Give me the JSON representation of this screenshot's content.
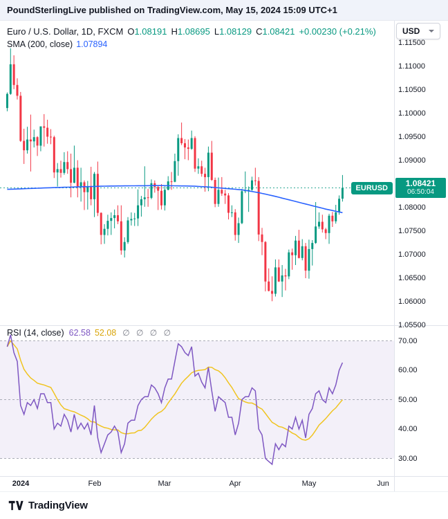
{
  "banner": {
    "publisher": "PoundSterlingLive",
    "text": " published on TradingView.com, May 15, 2024 15:09 UTC+1"
  },
  "currency_selector": {
    "label": "USD"
  },
  "legend": {
    "symbol": "Euro / U.S. Dollar, 1D, FXCM",
    "o_label": "O",
    "o": "1.08191",
    "h_label": "H",
    "h": "1.08695",
    "l_label": "L",
    "l": "1.08129",
    "c_label": "C",
    "c": "1.08421",
    "change": "+0.00230 (+0.21%)"
  },
  "sma_legend": {
    "label": "SMA (200, close)",
    "value": "1.07894"
  },
  "rsi_legend": {
    "label": "RSI (14, close)",
    "value": "62.58",
    "ma_value": "52.08",
    "markers": "∅ ∅ ∅ ∅"
  },
  "price_label": {
    "symbol": "EURUSD",
    "price": "1.08421",
    "countdown": "06:50:04"
  },
  "footer": {
    "brand": "TradingView"
  },
  "colors": {
    "up": "#089981",
    "down": "#f23645",
    "sma": "#2962ff",
    "rsi": "#7e57c2",
    "rsi_ma": "#f0c420",
    "band": "rgba(126,87,194,0.09)",
    "banner_bg": "#f0f3fa",
    "badge": "#089981"
  },
  "x_axis": {
    "ticks": [
      {
        "label": "2024",
        "index": 4,
        "bold": true
      },
      {
        "label": "Feb",
        "index": 26
      },
      {
        "label": "Mar",
        "index": 47
      },
      {
        "label": "Apr",
        "index": 68
      },
      {
        "label": "May",
        "index": 90
      },
      {
        "label": "Jun",
        "index": 112
      }
    ]
  },
  "chart_data": [
    {
      "type": "candlestick",
      "title": "Euro / U.S. Dollar, 1D, FXCM",
      "symbol": "EURUSD",
      "timeframe": "1D",
      "exchange": "FXCM",
      "last_price": 1.08421,
      "ohlc_last": {
        "o": 1.08191,
        "h": 1.08695,
        "l": 1.08129,
        "c": 1.08421,
        "change": 0.0023,
        "change_pct": 0.21
      },
      "ylim": [
        1.055,
        1.11975
      ],
      "yticks": [
        1.055,
        1.06,
        1.065,
        1.07,
        1.075,
        1.08,
        1.085,
        1.09,
        1.095,
        1.1,
        1.105,
        1.11,
        1.115
      ],
      "sma200_last": 1.07894,
      "sma200_points": [
        [
          0,
          1.0839
        ],
        [
          15,
          1.0843
        ],
        [
          30,
          1.0846
        ],
        [
          45,
          1.0847
        ],
        [
          55,
          1.0846
        ],
        [
          60,
          1.0844
        ],
        [
          65,
          1.0841
        ],
        [
          70,
          1.0838
        ],
        [
          75,
          1.0832
        ],
        [
          80,
          1.0824
        ],
        [
          85,
          1.0815
        ],
        [
          90,
          1.0806
        ],
        [
          95,
          1.0797
        ],
        [
          100,
          1.07894
        ]
      ],
      "candles": [
        [
          1.1012,
          1.1045,
          1.1005,
          1.1042
        ],
        [
          1.1042,
          1.1139,
          1.104,
          1.1105
        ],
        [
          1.1105,
          1.1124,
          1.1052,
          1.1061
        ],
        [
          1.1061,
          1.1075,
          1.103,
          1.1038
        ],
        [
          1.1038,
          1.1046,
          1.094,
          1.0942
        ],
        [
          1.0942,
          1.0968,
          1.0893,
          1.0922
        ],
        [
          1.0922,
          1.0972,
          1.0915,
          1.0945
        ],
        [
          1.0945,
          1.0998,
          1.0877,
          1.0941
        ],
        [
          1.0941,
          1.0966,
          1.0928,
          1.095
        ],
        [
          1.095,
          1.0952,
          1.091,
          1.0932
        ],
        [
          1.0932,
          1.097,
          1.092,
          1.0973
        ],
        [
          1.0973,
          1.0999,
          1.093,
          1.097
        ],
        [
          1.097,
          1.0987,
          1.0936,
          1.0951
        ],
        [
          1.0951,
          1.0967,
          1.0935,
          1.095
        ],
        [
          1.095,
          1.0953,
          1.0863,
          1.0875
        ],
        [
          1.0875,
          1.0895,
          1.0845,
          1.0882
        ],
        [
          1.0882,
          1.09,
          1.0864,
          1.0874
        ],
        [
          1.0874,
          1.0918,
          1.087,
          1.0897
        ],
        [
          1.0897,
          1.092,
          1.0872,
          1.0882
        ],
        [
          1.0882,
          1.0915,
          1.0822,
          1.0853
        ],
        [
          1.0853,
          1.0932,
          1.0852,
          1.0885
        ],
        [
          1.0885,
          1.0901,
          1.0822,
          1.0845
        ],
        [
          1.0845,
          1.0885,
          1.0813,
          1.0854
        ],
        [
          1.0854,
          1.0858,
          1.0795,
          1.0833
        ],
        [
          1.0833,
          1.0857,
          1.0796,
          1.0844
        ],
        [
          1.0844,
          1.0887,
          1.0805,
          1.0818
        ],
        [
          1.0818,
          1.0876,
          1.078,
          1.0872
        ],
        [
          1.0872,
          1.0898,
          1.0782,
          1.0789
        ],
        [
          1.0789,
          1.079,
          1.0722,
          1.0742
        ],
        [
          1.0742,
          1.0765,
          1.0723,
          1.0755
        ],
        [
          1.0755,
          1.0785,
          1.0741,
          1.0772
        ],
        [
          1.0772,
          1.079,
          1.0742,
          1.0778
        ],
        [
          1.0778,
          1.0796,
          1.0756,
          1.0784
        ],
        [
          1.0784,
          1.0805,
          1.0765,
          1.0771
        ],
        [
          1.0771,
          1.0805,
          1.07,
          1.0709
        ],
        [
          1.0709,
          1.0737,
          1.0694,
          1.0727
        ],
        [
          1.0727,
          1.078,
          1.0723,
          1.0773
        ],
        [
          1.0773,
          1.079,
          1.0762,
          1.0776
        ],
        [
          1.0776,
          1.0789,
          1.0761,
          1.0777
        ],
        [
          1.0777,
          1.0839,
          1.0761,
          1.0805
        ],
        [
          1.0805,
          1.0825,
          1.0781,
          1.0818
        ],
        [
          1.0818,
          1.0888,
          1.0802,
          1.0822
        ],
        [
          1.0822,
          1.084,
          1.0802,
          1.0821
        ],
        [
          1.0821,
          1.086,
          1.0818,
          1.0852
        ],
        [
          1.0852,
          1.0858,
          1.0832,
          1.0844
        ],
        [
          1.0844,
          1.0847,
          1.0795,
          1.0836
        ],
        [
          1.0836,
          1.085,
          1.0796,
          1.0805
        ],
        [
          1.0805,
          1.0845,
          1.0794,
          1.0838
        ],
        [
          1.0838,
          1.0867,
          1.0837,
          1.0856
        ],
        [
          1.0856,
          1.0876,
          1.0838,
          1.0855
        ],
        [
          1.0855,
          1.0915,
          1.0854,
          1.0899
        ],
        [
          1.0899,
          1.0956,
          1.0868,
          1.0948
        ],
        [
          1.0948,
          1.0981,
          1.0933,
          1.0937
        ],
        [
          1.0937,
          1.0946,
          1.0903,
          1.0928
        ],
        [
          1.0928,
          1.0945,
          1.0901,
          1.0925
        ],
        [
          1.0925,
          1.0964,
          1.0923,
          1.0948
        ],
        [
          1.0948,
          1.0952,
          1.0876,
          1.0883
        ],
        [
          1.0883,
          1.0905,
          1.0872,
          1.0888
        ],
        [
          1.0888,
          1.09,
          1.0866,
          1.0872
        ],
        [
          1.0872,
          1.0885,
          1.0834,
          1.0865
        ],
        [
          1.0865,
          1.093,
          1.0835,
          1.0917
        ],
        [
          1.0917,
          1.0942,
          1.0857,
          1.0859
        ],
        [
          1.0859,
          1.0864,
          1.0801,
          1.0808
        ],
        [
          1.0808,
          1.0864,
          1.0802,
          1.0838
        ],
        [
          1.0838,
          1.0865,
          1.0825,
          1.083
        ],
        [
          1.083,
          1.0838,
          1.0808,
          1.0826
        ],
        [
          1.0826,
          1.0831,
          1.0775,
          1.0789
        ],
        [
          1.0789,
          1.0805,
          1.078,
          1.079
        ],
        [
          1.079,
          1.0797,
          1.073,
          1.0742
        ],
        [
          1.0742,
          1.0779,
          1.0725,
          1.0767
        ],
        [
          1.0767,
          1.084,
          1.0765,
          1.0835
        ],
        [
          1.0835,
          1.0877,
          1.0831,
          1.0837
        ],
        [
          1.0837,
          1.0845,
          1.0791,
          1.0838
        ],
        [
          1.0838,
          1.0866,
          1.0836,
          1.0858
        ],
        [
          1.0858,
          1.0885,
          1.0847,
          1.0857
        ],
        [
          1.0857,
          1.0865,
          1.0729,
          1.0743
        ],
        [
          1.0743,
          1.0757,
          1.0699,
          1.0727
        ],
        [
          1.0727,
          1.0729,
          1.0622,
          1.0643
        ],
        [
          1.0643,
          1.0671,
          1.0622,
          1.0623
        ],
        [
          1.0623,
          1.0654,
          1.0601,
          1.0617
        ],
        [
          1.0617,
          1.069,
          1.0611,
          1.0673
        ],
        [
          1.0673,
          1.069,
          1.0642,
          1.0643
        ],
        [
          1.0643,
          1.0678,
          1.061,
          1.0656
        ],
        [
          1.0656,
          1.067,
          1.0624,
          1.0654
        ],
        [
          1.0654,
          1.0711,
          1.0648,
          1.0705
        ],
        [
          1.0705,
          1.0713,
          1.0668,
          1.0699
        ],
        [
          1.0699,
          1.074,
          1.0678,
          1.073
        ],
        [
          1.073,
          1.0753,
          1.0692,
          1.0693
        ],
        [
          1.0693,
          1.0733,
          1.0688,
          1.0718
        ],
        [
          1.0718,
          1.0725,
          1.065,
          1.0666
        ],
        [
          1.0666,
          1.0732,
          1.0649,
          1.0712
        ],
        [
          1.0712,
          1.0731,
          1.0677,
          1.0725
        ],
        [
          1.0725,
          1.0812,
          1.0723,
          1.076
        ],
        [
          1.076,
          1.079,
          1.0755,
          1.077
        ],
        [
          1.077,
          1.0785,
          1.0747,
          1.0754
        ],
        [
          1.0754,
          1.0757,
          1.0733,
          1.0746
        ],
        [
          1.0746,
          1.0787,
          1.0723,
          1.0783
        ],
        [
          1.0783,
          1.0791,
          1.0759,
          1.0771
        ],
        [
          1.0771,
          1.0806,
          1.0766,
          1.079
        ],
        [
          1.079,
          1.0826,
          1.0785,
          1.0819
        ],
        [
          1.08191,
          1.08695,
          1.08129,
          1.08421
        ]
      ]
    },
    {
      "type": "line",
      "title": "RSI (14, close)",
      "indicator": "RSI",
      "period": 14,
      "source": "close",
      "last": 62.58,
      "ma_last": 52.08,
      "ylim": [
        24,
        75.3
      ],
      "yticks": [
        30,
        40,
        50,
        60,
        70
      ],
      "hlines": [
        70,
        50,
        30
      ],
      "values": [
        68,
        72,
        66,
        63,
        48,
        45,
        49,
        48,
        50,
        47,
        52,
        52,
        49,
        49,
        40,
        42,
        41,
        45,
        43,
        39,
        45,
        40,
        42,
        40,
        42,
        38,
        48,
        37,
        32,
        35,
        38,
        39,
        41,
        39,
        32,
        35,
        42,
        43,
        43,
        48,
        50,
        51,
        51,
        55,
        54,
        52,
        49,
        54,
        57,
        57,
        63,
        69,
        68,
        66,
        65,
        68,
        58,
        59,
        56,
        54,
        61,
        53,
        46,
        51,
        50,
        49,
        44,
        44,
        38,
        42,
        50,
        51,
        51,
        54,
        53,
        40,
        38,
        30,
        29,
        28,
        35,
        33,
        35,
        34,
        41,
        40,
        44,
        40,
        43,
        37,
        45,
        47,
        52,
        53,
        50,
        49,
        54,
        52,
        55,
        60,
        62.58
      ]
    }
  ]
}
